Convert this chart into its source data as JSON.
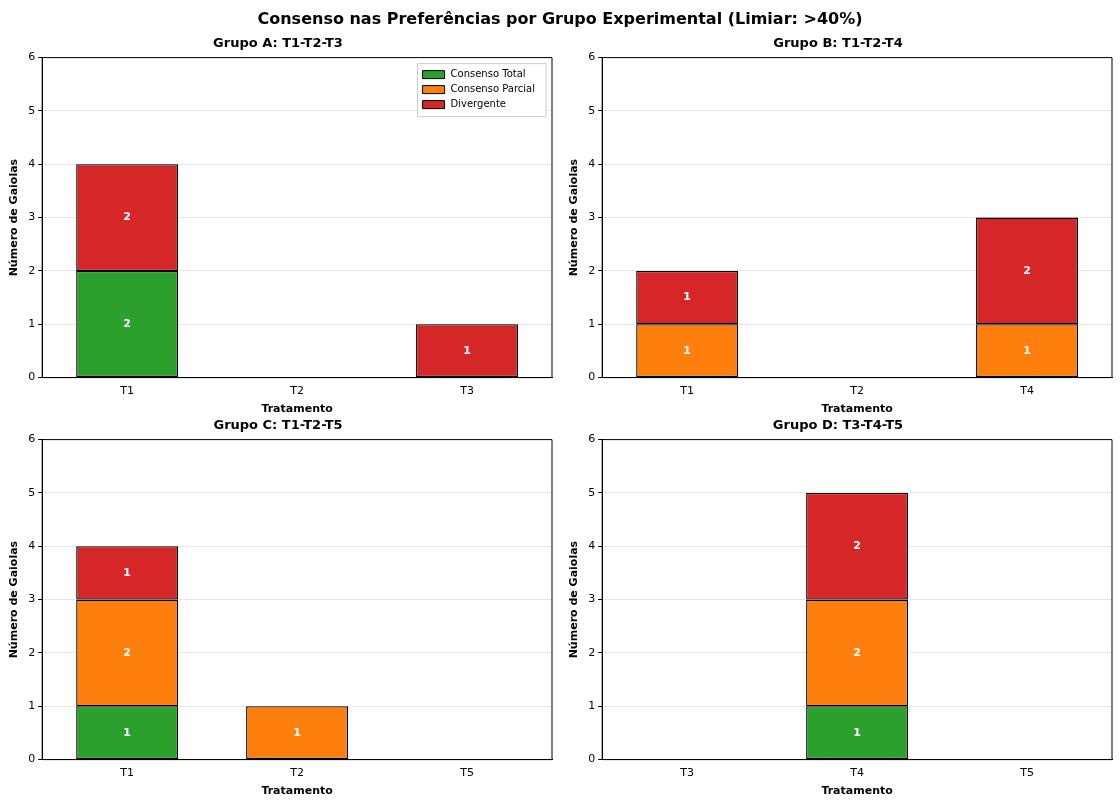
{
  "chart_data": [
    {
      "type": "bar",
      "title": "Grupo A: T1-T2-T3",
      "xlabel": "Tratamento",
      "ylabel": "Número de Gaiolas",
      "annotations": [
        "Consenso nas Preferências por Grupo Experimental (Limiar: >40%)"
      ],
      "categories": [
        "T1",
        "T2",
        "T3"
      ],
      "stacked": true,
      "ylim": [
        0,
        6
      ],
      "yticks": [
        0,
        1,
        2,
        3,
        4,
        5,
        6
      ],
      "grid": "y",
      "legend": "top right",
      "series": [
        {
          "name": "Consenso Total",
          "color": "#2ca02c",
          "values": [
            2,
            0,
            0
          ],
          "value_labels": [
            "2",
            null,
            null
          ]
        },
        {
          "name": "Consenso Parcial",
          "color": "#ff7f0e",
          "values": [
            0,
            0,
            0
          ],
          "value_labels": [
            null,
            null,
            null
          ]
        },
        {
          "name": "Divergente",
          "color": "#d62728",
          "values": [
            2,
            0,
            1
          ],
          "value_labels": [
            "2",
            null,
            "1"
          ]
        }
      ]
    },
    {
      "type": "bar",
      "title": "Grupo B: T1-T2-T4",
      "xlabel": "Tratamento",
      "ylabel": "Número de Gaiolas",
      "categories": [
        "T1",
        "T2",
        "T4"
      ],
      "stacked": true,
      "ylim": [
        0,
        6
      ],
      "yticks": [
        0,
        1,
        2,
        3,
        4,
        5,
        6
      ],
      "grid": "y",
      "series": [
        {
          "color": "#2ca02c",
          "values": [
            0,
            0,
            0
          ],
          "value_labels": [
            null,
            null,
            null
          ]
        },
        {
          "color": "#ff7f0e",
          "values": [
            1,
            0,
            1
          ],
          "value_labels": [
            "1",
            null,
            "1"
          ]
        },
        {
          "color": "#d62728",
          "values": [
            1,
            0,
            2
          ],
          "value_labels": [
            "1",
            null,
            "2"
          ]
        }
      ]
    },
    {
      "type": "bar",
      "title": "Grupo C: T1-T2-T5",
      "xlabel": "Tratamento",
      "ylabel": "Número de Gaiolas",
      "categories": [
        "T1",
        "T2",
        "T5"
      ],
      "stacked": true,
      "ylim": [
        0,
        6
      ],
      "yticks": [
        0,
        1,
        2,
        3,
        4,
        5,
        6
      ],
      "grid": "y",
      "series": [
        {
          "color": "#2ca02c",
          "values": [
            1,
            0,
            0
          ],
          "value_labels": [
            "1",
            null,
            null
          ]
        },
        {
          "color": "#ff7f0e",
          "values": [
            2,
            1,
            0
          ],
          "value_labels": [
            "2",
            "1",
            null
          ]
        },
        {
          "color": "#d62728",
          "values": [
            1,
            0,
            0
          ],
          "value_labels": [
            "1",
            null,
            null
          ]
        }
      ]
    },
    {
      "type": "bar",
      "title": "Grupo D: T3-T4-T5",
      "xlabel": "Tratamento",
      "ylabel": "Número de Gaiolas",
      "categories": [
        "T3",
        "T4",
        "T5"
      ],
      "stacked": true,
      "ylim": [
        0,
        6
      ],
      "yticks": [
        0,
        1,
        2,
        3,
        4,
        5,
        6
      ],
      "grid": "y",
      "series": [
        {
          "color": "#2ca02c",
          "values": [
            0,
            1,
            0
          ],
          "value_labels": [
            null,
            "1",
            null
          ]
        },
        {
          "color": "#ff7f0e",
          "values": [
            0,
            2,
            0
          ],
          "value_labels": [
            null,
            "2",
            null
          ]
        },
        {
          "color": "#d62728",
          "values": [
            0,
            2,
            0
          ],
          "value_labels": [
            null,
            "2",
            null
          ]
        }
      ]
    }
  ]
}
